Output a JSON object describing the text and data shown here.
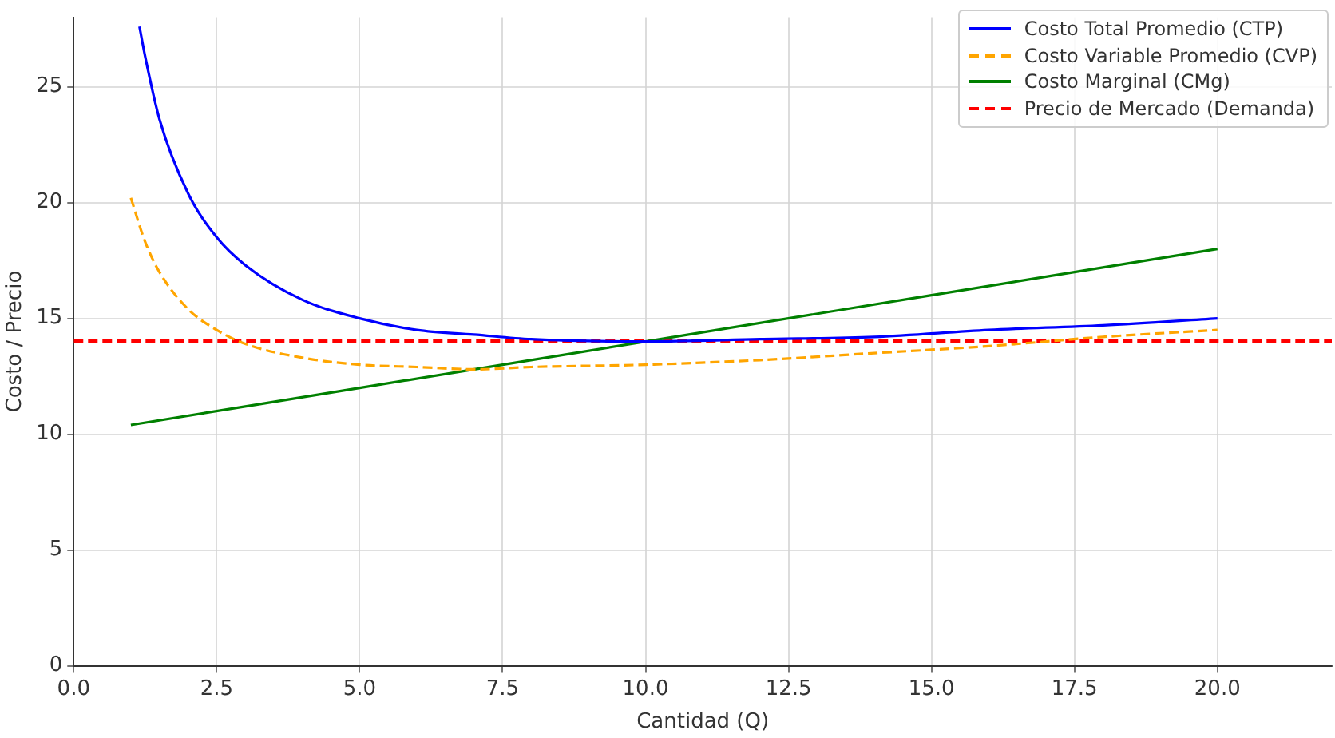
{
  "chart_data": {
    "type": "line",
    "xlabel": "Cantidad (Q)",
    "ylabel": "Costo / Precio",
    "xlim": [
      0,
      22
    ],
    "ylim": [
      0,
      28
    ],
    "xticks": [
      {
        "value": 0,
        "label": "0.0"
      },
      {
        "value": 2.5,
        "label": "2.5"
      },
      {
        "value": 5,
        "label": "5.0"
      },
      {
        "value": 7.5,
        "label": "7.5"
      },
      {
        "value": 10,
        "label": "10.0"
      },
      {
        "value": 12.5,
        "label": "12.5"
      },
      {
        "value": 15,
        "label": "15.0"
      },
      {
        "value": 17.5,
        "label": "17.5"
      },
      {
        "value": 20,
        "label": "20.0"
      }
    ],
    "yticks": [
      0,
      5,
      10,
      15,
      20,
      25
    ],
    "grid": true,
    "legend": "top right",
    "marker": "none",
    "series": [
      {
        "name": "Costo Total Promedio (CTP)",
        "color": "#0000ff",
        "line_style": "solid",
        "x": [
          1.15,
          1.25,
          1.5,
          2,
          2.5,
          3,
          4,
          5,
          6,
          7,
          8,
          10,
          12,
          14,
          16,
          18,
          20
        ],
        "values": [
          27.6,
          26.3,
          23.6,
          20.4,
          18.5,
          17.3,
          15.8,
          15.0,
          14.5,
          14.3,
          14.1,
          14.0,
          14.1,
          14.2,
          14.5,
          14.7,
          15.0
        ]
      },
      {
        "name": "Costo Variable Promedio (CVP)",
        "color": "#ffa500",
        "line_style": "dashed",
        "x": [
          1,
          1.25,
          1.5,
          2,
          2.5,
          3,
          4,
          5,
          6,
          7,
          8,
          10,
          12,
          14,
          16,
          18,
          20
        ],
        "values": [
          20.2,
          18.3,
          17.0,
          15.4,
          14.5,
          13.9,
          13.3,
          13.0,
          12.9,
          12.8,
          12.9,
          13.0,
          13.2,
          13.5,
          13.8,
          14.2,
          14.5
        ]
      },
      {
        "name": "Costo Marginal (CMg)",
        "color": "#008000",
        "line_style": "solid",
        "x": [
          1,
          5,
          10,
          15,
          20
        ],
        "values": [
          10.4,
          12.0,
          14.0,
          16.0,
          18.0
        ]
      },
      {
        "name": "Precio de Mercado (Demanda)",
        "color": "#ff0000",
        "line_style": "dashed",
        "x": [
          0,
          22
        ],
        "values": [
          14,
          14
        ]
      }
    ]
  }
}
